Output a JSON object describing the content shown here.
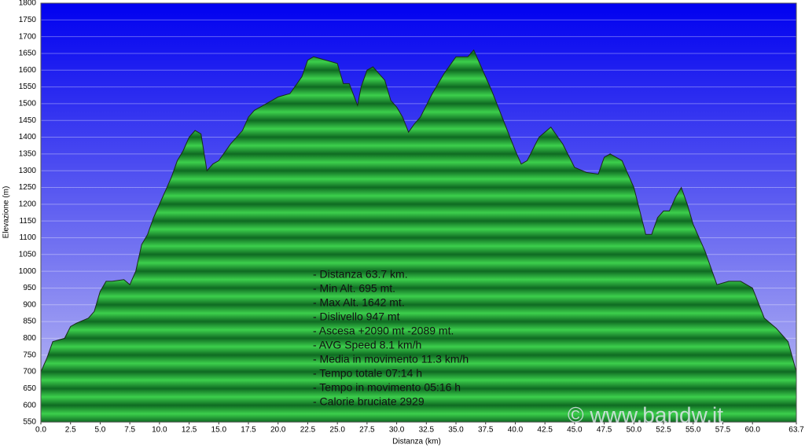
{
  "chart_data": {
    "type": "area",
    "xlabel": "Distanza   (km)",
    "ylabel": "Elevazione (m)",
    "x": [
      0,
      0.5,
      1,
      2,
      2.5,
      3,
      4,
      4.5,
      5,
      5.5,
      6,
      7,
      7.5,
      8,
      8.5,
      9,
      9.5,
      10,
      10.5,
      11,
      11.5,
      12,
      12.5,
      13,
      13.5,
      14,
      14.5,
      15,
      16,
      17,
      17.5,
      18,
      19,
      20,
      21,
      22,
      22.5,
      23,
      24,
      25,
      25.5,
      26,
      26.7,
      27,
      27.5,
      28,
      29,
      29.5,
      30,
      30.5,
      31,
      31.5,
      32,
      33,
      34,
      35,
      36,
      36.5,
      37,
      38,
      39,
      40,
      40.5,
      41,
      42,
      43,
      44,
      45,
      46,
      47,
      47.5,
      48,
      49,
      50,
      51,
      51.5,
      52,
      52.5,
      53,
      53.5,
      54,
      54.5,
      55,
      56,
      57,
      58,
      59,
      60,
      61,
      62,
      63,
      63.7
    ],
    "series": [
      {
        "name": "Elevazione",
        "color": "#22a83a",
        "values": [
          700,
          740,
          790,
          800,
          835,
          845,
          860,
          880,
          940,
          970,
          970,
          975,
          960,
          1000,
          1080,
          1110,
          1160,
          1200,
          1240,
          1280,
          1330,
          1360,
          1400,
          1420,
          1410,
          1300,
          1320,
          1330,
          1380,
          1420,
          1460,
          1480,
          1500,
          1520,
          1530,
          1580,
          1630,
          1640,
          1630,
          1620,
          1560,
          1560,
          1495,
          1550,
          1600,
          1610,
          1570,
          1510,
          1490,
          1460,
          1415,
          1440,
          1460,
          1530,
          1590,
          1640,
          1640,
          1660,
          1620,
          1540,
          1450,
          1360,
          1320,
          1330,
          1400,
          1430,
          1380,
          1310,
          1295,
          1290,
          1340,
          1350,
          1330,
          1250,
          1110,
          1110,
          1160,
          1180,
          1180,
          1220,
          1250,
          1200,
          1140,
          1060,
          960,
          970,
          970,
          950,
          860,
          830,
          790,
          700
        ]
      }
    ],
    "xlim": [
      0,
      63.7
    ],
    "ylim": [
      550,
      1800
    ],
    "xticks": [
      {
        "value": 0,
        "label": "0.0"
      },
      2.5,
      {
        "value": 5,
        "label": "5.0"
      },
      7.5,
      {
        "value": 10,
        "label": "10.0"
      },
      12.5,
      {
        "value": 15,
        "label": "15.0"
      },
      17.5,
      {
        "value": 20,
        "label": "20.0"
      },
      22.5,
      {
        "value": 25,
        "label": "25.0"
      },
      27.5,
      {
        "value": 30,
        "label": "30.0"
      },
      32.5,
      {
        "value": 35,
        "label": "35.0"
      },
      37.5,
      {
        "value": 40,
        "label": "40.0"
      },
      42.5,
      {
        "value": 45,
        "label": "45.0"
      },
      47.5,
      {
        "value": 50,
        "label": "50.0"
      },
      52.5,
      {
        "value": 55,
        "label": "55.0"
      },
      57.5,
      {
        "value": 60,
        "label": "60.0"
      },
      63.7
    ],
    "yticks": [
      550,
      600,
      650,
      700,
      750,
      800,
      850,
      900,
      950,
      1000,
      1050,
      1100,
      1150,
      1200,
      1250,
      1300,
      1350,
      1400,
      1450,
      1500,
      1550,
      1600,
      1650,
      1700,
      1750,
      1800
    ],
    "grid": true,
    "annotations": [
      "- Distanza 63.7 km.",
      "- Min Alt. 695 mt.",
      "- Max Alt. 1642 mt.",
      "- Dislivello 947 mt",
      "- Ascesa +2090 mt -2089 mt.",
      "- AVG Speed 8.1 km/h",
      "- Media in movimento 11.3 km/h",
      "- Tempo totale 07:14 h",
      "- Tempo in movimento 05:16 h",
      "- Calorie bruciate 2929"
    ],
    "watermark": "© www.bandw.it"
  }
}
